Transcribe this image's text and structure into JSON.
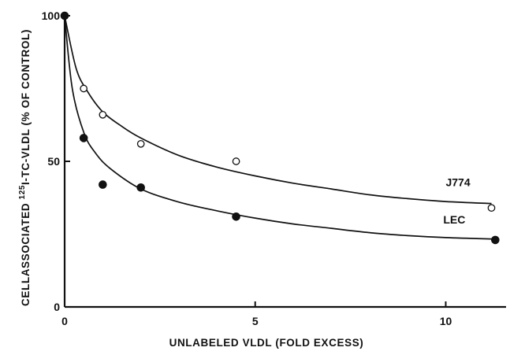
{
  "chart_data": {
    "type": "scatter",
    "title": "",
    "xlabel": "UNLABELED VLDL (FOLD EXCESS)",
    "ylabel_prefix": "CELLASSOCIATED ",
    "ylabel_superscript": "125",
    "ylabel_suffix": "I-TC-VLDL (% OF CONTROL)",
    "xlim": [
      0,
      11.5
    ],
    "ylim": [
      0,
      100
    ],
    "x_ticks": [
      0,
      5,
      10
    ],
    "y_ticks": [
      0,
      50,
      100
    ],
    "grid": false,
    "series": [
      {
        "name": "J774",
        "marker": "open-circle",
        "x": [
          0,
          0.5,
          1.0,
          2.0,
          4.5,
          11.2
        ],
        "y": [
          100,
          75,
          66,
          56,
          50,
          34
        ],
        "fit_curve": [
          [
            0,
            100
          ],
          [
            0.3,
            82
          ],
          [
            0.6,
            74
          ],
          [
            1.0,
            67
          ],
          [
            1.5,
            62
          ],
          [
            2.0,
            58
          ],
          [
            3.0,
            52
          ],
          [
            4.0,
            48
          ],
          [
            5.0,
            45
          ],
          [
            6.0,
            42.5
          ],
          [
            7.0,
            40.5
          ],
          [
            8.0,
            38.5
          ],
          [
            9.0,
            37.2
          ],
          [
            10.0,
            36.2
          ],
          [
            11.2,
            35.5
          ]
        ]
      },
      {
        "name": "LEC",
        "marker": "filled-circle",
        "x": [
          0,
          0.5,
          1.0,
          2.0,
          4.5,
          11.3
        ],
        "y": [
          100,
          58,
          42,
          41,
          31,
          23
        ],
        "fit_curve": [
          [
            0,
            100
          ],
          [
            0.2,
            75
          ],
          [
            0.5,
            60
          ],
          [
            0.8,
            53
          ],
          [
            1.2,
            47.5
          ],
          [
            2.0,
            40.5
          ],
          [
            3.0,
            36
          ],
          [
            4.0,
            33
          ],
          [
            5.0,
            30.5
          ],
          [
            6.0,
            28.5
          ],
          [
            7.0,
            27
          ],
          [
            8.0,
            25.5
          ],
          [
            9.0,
            24.5
          ],
          [
            10.0,
            23.8
          ],
          [
            11.3,
            23.3
          ]
        ]
      }
    ]
  }
}
